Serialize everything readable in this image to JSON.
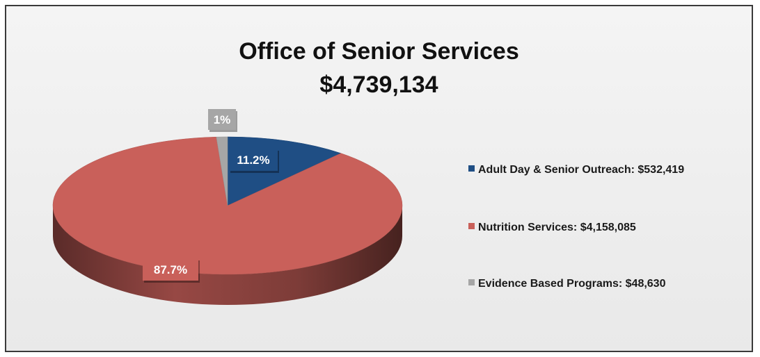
{
  "chart_data": {
    "type": "pie",
    "title": "Office of Senior Services",
    "subtitle": "$4,739,134",
    "slices": [
      {
        "label": "Adult Day & Senior Outreach: $532,419",
        "value": 532419,
        "percent_label": "11.2%",
        "color": "#1f4e84"
      },
      {
        "label": "Nutrition Services: $4,158,085",
        "value": 4158085,
        "percent_label": "87.7%",
        "color": "#c9605a"
      },
      {
        "label": "Evidence Based Programs: $48,630",
        "value": 48630,
        "percent_label": "1%",
        "color": "#a6a6a6"
      }
    ],
    "legend_position": "right",
    "style": "3d"
  }
}
